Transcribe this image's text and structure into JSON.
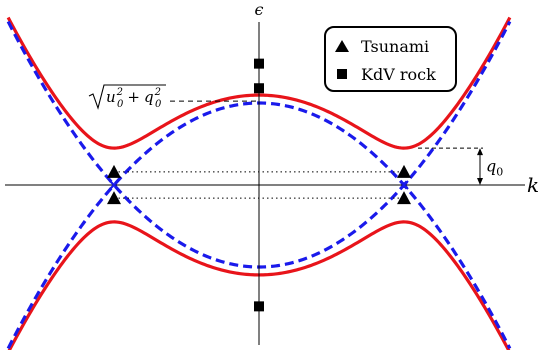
{
  "chart_data": {
    "type": "line",
    "title": "",
    "xlabel": "k",
    "ylabel": "ϵ",
    "grid": false,
    "legend_placement": "top-right",
    "parameters": {
      "u0": 1.0,
      "q0": 0.45
    },
    "xlim": [
      -1.6,
      1.6
    ],
    "ylim": [
      -1.9,
      1.9
    ],
    "series": [
      {
        "name": "",
        "style": "solid",
        "color": "#e8141a",
        "formula": "±sqrt((k^2-u0^2)^2+q0^2)",
        "x": [
          -1.5,
          -1.4,
          -1.3,
          -1.2,
          -1.1,
          -1.0,
          -0.9,
          -0.8,
          -0.7,
          -0.6,
          -0.5,
          -0.4,
          -0.3,
          -0.2,
          -0.1,
          0.0,
          0.1,
          0.2,
          0.3,
          0.4,
          0.5,
          0.6,
          0.7,
          0.8,
          0.9,
          1.0,
          1.1,
          1.2,
          1.3,
          1.4,
          1.5
        ],
        "y_upper": [
          1.3303,
          1.0568,
          0.8232,
          0.6258,
          0.4976,
          0.45,
          0.4888,
          0.5801,
          0.6922,
          0.8003,
          0.8873,
          0.9483,
          0.9871,
          1.009,
          1.0205,
          1.0235,
          1.0205,
          1.009,
          0.9871,
          0.9483,
          0.8873,
          0.8003,
          0.6922,
          0.5801,
          0.4888,
          0.45,
          0.4976,
          0.6258,
          0.8232,
          1.0568,
          1.3303
        ]
      },
      {
        "name": "",
        "style": "dashed",
        "color": "#1a1aeb",
        "formula": "±|k^2-u0^2|",
        "x": [
          -1.5,
          -1.4,
          -1.3,
          -1.2,
          -1.1,
          -1.0,
          -0.9,
          -0.8,
          -0.7,
          -0.6,
          -0.5,
          -0.4,
          -0.3,
          -0.2,
          -0.1,
          0.0,
          0.1,
          0.2,
          0.3,
          0.4,
          0.5,
          0.6,
          0.7,
          0.8,
          0.9,
          1.0,
          1.1,
          1.2,
          1.3,
          1.4,
          1.5
        ],
        "y_upper": [
          1.25,
          0.96,
          0.69,
          0.44,
          0.21,
          0.0,
          0.19,
          0.36,
          0.51,
          0.64,
          0.75,
          0.84,
          0.91,
          0.96,
          0.99,
          1.0,
          0.99,
          0.96,
          0.91,
          0.84,
          0.75,
          0.64,
          0.51,
          0.36,
          0.19,
          0.0,
          0.21,
          0.44,
          0.69,
          0.96,
          1.25
        ]
      },
      {
        "name": "Tsunami",
        "marker": "triangle",
        "color": "#000000",
        "points": [
          [
            -1.0,
            0.16
          ],
          [
            -1.0,
            -0.16
          ],
          [
            1.0,
            0.16
          ],
          [
            1.0,
            -0.16
          ]
        ]
      },
      {
        "name": "KdV rock",
        "marker": "square",
        "color": "#000000",
        "points": [
          [
            0.0,
            1.48
          ],
          [
            0.0,
            1.18
          ],
          [
            0.0,
            -1.48
          ]
        ]
      }
    ],
    "crossing_points": [
      [
        -1.0,
        0.0
      ],
      [
        1.0,
        0.0
      ]
    ],
    "annotations": [
      {
        "id": "peak",
        "text_parts": [
          "u",
          "0",
          "2",
          "q",
          "0",
          "2"
        ],
        "value": "sqrt(u0^2+q0^2)",
        "y": 1.0235,
        "style": "dashed leader to curve maximum"
      },
      {
        "id": "gap",
        "base": "q",
        "sub": "0",
        "value": 0.45,
        "style": "dashed leader with double arrow"
      }
    ],
    "guides": [
      {
        "style": "dotted",
        "y": 0.16,
        "x": [
          -1.0,
          1.0
        ]
      },
      {
        "style": "dotted",
        "y": -0.16,
        "x": [
          -1.0,
          1.0
        ]
      }
    ],
    "legend": {
      "entries": [
        {
          "marker": "triangle",
          "label": "Tsunami"
        },
        {
          "marker": "square",
          "label": "KdV rock"
        }
      ]
    },
    "plus_sign": "+",
    "colors": {
      "red_curve": "#e8141a",
      "blue_curve": "#1a1aeb",
      "axes": "#000000",
      "legend_border": "#000000"
    }
  }
}
